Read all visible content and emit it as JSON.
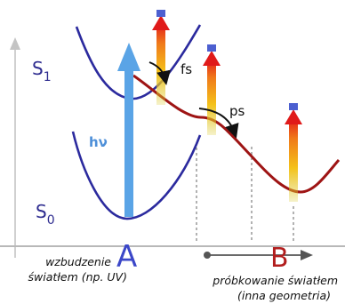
{
  "labels": {
    "s1_letter": "S",
    "s1_sub": "1",
    "s0_letter": "S",
    "s0_sub": "0",
    "hv": "hν",
    "fs": "fs",
    "ps": "ps",
    "point_a": "A",
    "point_b": "B"
  },
  "captions": {
    "excitation_line1": "wzbudzenie",
    "excitation_line2": "światłem (np. UV)",
    "probing_line1": "próbkowanie światłem",
    "probing_line2": "(inna geometria)"
  },
  "colors": {
    "s1_curve": "#2b2a9e",
    "s0_curve": "#2b2a9e",
    "excited_path": "#9e1414",
    "pump_arrow": "#5aa4e6",
    "axis": "#b8b8b8",
    "label_blue": "#2d2b8f",
    "hv_text": "#4d8fd8",
    "probe_gradient": [
      "#e11a1a",
      "#f08a1a",
      "#f4d21a",
      "#d6c02a"
    ],
    "probe_cap": "#4c5fd0"
  }
}
